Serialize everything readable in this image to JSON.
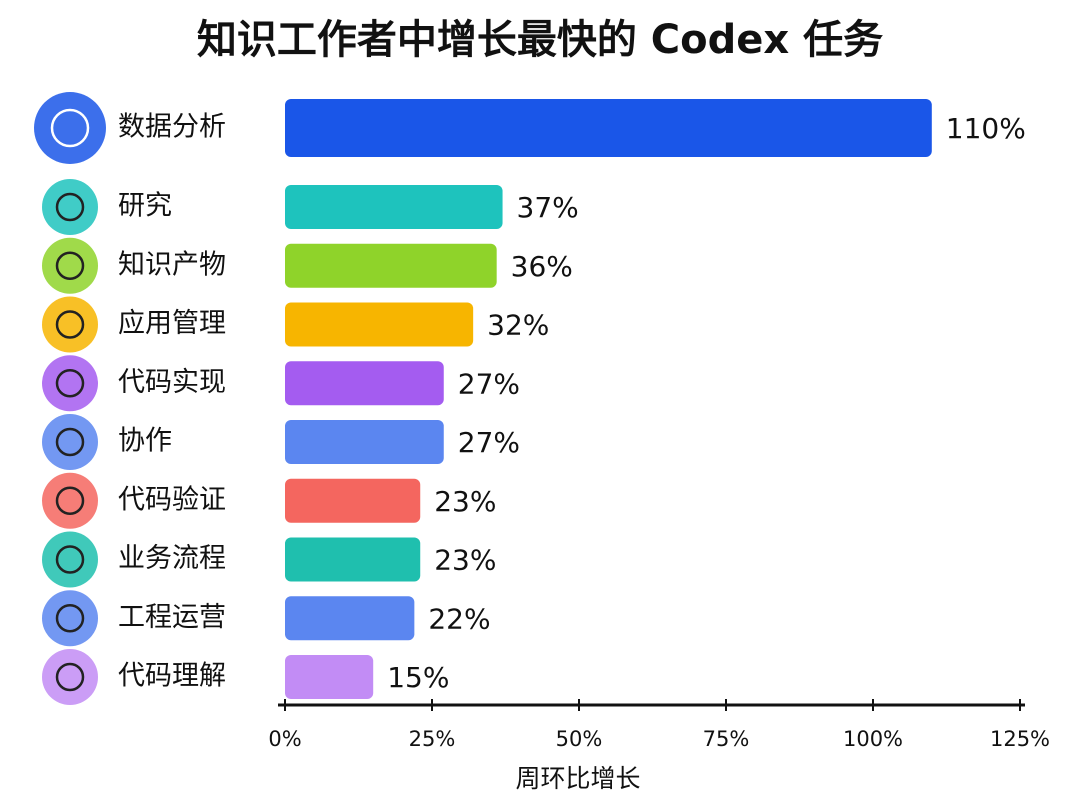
{
  "chart_data": {
    "type": "bar",
    "orientation": "horizontal",
    "title": "知识工作者中增长最快的 Codex 任务",
    "categories": [
      "数据分析",
      "研究",
      "知识产物",
      "应用管理",
      "代码实现",
      "协作",
      "代码验证",
      "业务流程",
      "工程运营",
      "代码理解"
    ],
    "values": [
      110,
      37,
      36,
      32,
      27,
      27,
      23,
      23,
      22,
      15
    ],
    "value_labels": [
      "110%",
      "37%",
      "36%",
      "32%",
      "27%",
      "27%",
      "23%",
      "23%",
      "22%",
      "15%"
    ],
    "colors": [
      "#1a56e8",
      "#1ec3bd",
      "#8fd32a",
      "#f7b500",
      "#a45cf0",
      "#5b86f0",
      "#f4665f",
      "#1fbfae",
      "#5b86f0",
      "#c28cf5"
    ],
    "xlim": [
      0,
      125
    ],
    "xticks": [
      {
        "value": 0,
        "label": "0%"
      },
      {
        "value": 25,
        "label": "25%"
      },
      {
        "value": 50,
        "label": "50%"
      },
      {
        "value": 75,
        "label": "75%"
      },
      {
        "value": 100,
        "label": "100%"
      },
      {
        "value": 125,
        "label": "125%"
      }
    ],
    "xlabel": "周环比增长"
  }
}
